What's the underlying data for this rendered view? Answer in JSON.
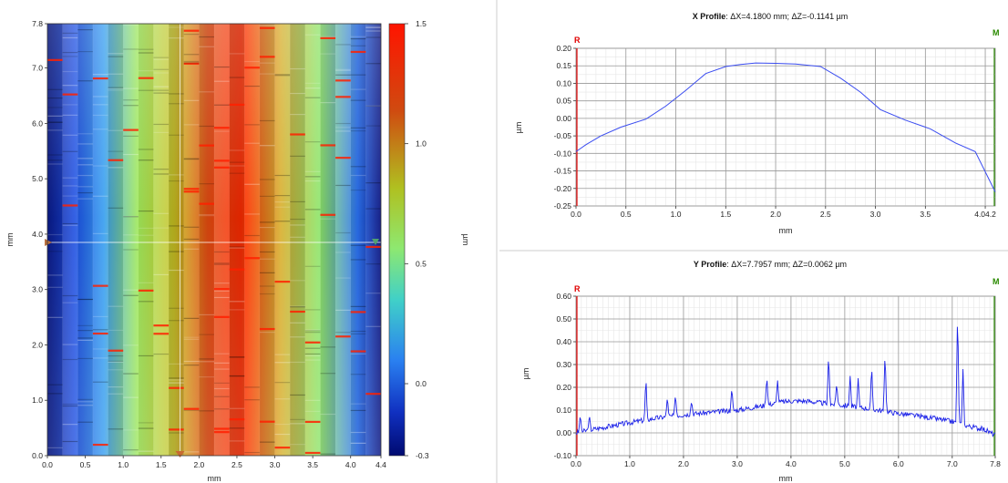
{
  "heatmap": {
    "xlabel": "mm",
    "ylabel": "mm",
    "x_ticks": [
      "0.0",
      "0.5",
      "1.0",
      "1.5",
      "2.0",
      "2.5",
      "3.0",
      "3.5",
      "4.0",
      "4.4"
    ],
    "y_ticks": [
      "0.0",
      "1.0",
      "2.0",
      "3.0",
      "4.0",
      "5.0",
      "6.0",
      "7.0",
      "7.8"
    ],
    "colorbar_label": "µm",
    "colorbar_ticks": [
      "1.5",
      "1.0",
      "0.5",
      "0.0",
      "-0.3"
    ],
    "colors": {
      "low": "#000a70",
      "mid": "#9ee85a",
      "high": "#ff1a00"
    }
  },
  "x_profile": {
    "title_bold": "X Profile",
    "title_rest": ": ΔX=4.1800 mm; ΔZ=-0.1141 µm",
    "marker_r": "R",
    "marker_m": "M",
    "xlabel": "mm",
    "ylabel": "µm",
    "x_ticks": [
      "0.0",
      "0.5",
      "1.0",
      "1.5",
      "2.0",
      "2.5",
      "3.0",
      "3.5",
      "4.04.2"
    ],
    "y_ticks": [
      "0.20",
      "0.15",
      "0.10",
      "0.05",
      "0.00",
      "-0.05",
      "-0.10",
      "-0.15",
      "-0.20",
      "-0.25"
    ]
  },
  "y_profile": {
    "title_bold": "Y Profile",
    "title_rest": ": ΔX=7.7957 mm; ΔZ=0.0062 µm",
    "marker_r": "R",
    "marker_m": "M",
    "xlabel": "mm",
    "ylabel": "µm",
    "x_ticks": [
      "0.0",
      "1.0",
      "2.0",
      "3.0",
      "4.0",
      "5.0",
      "6.0",
      "7.0",
      "7.8"
    ],
    "y_ticks": [
      "0.60",
      "0.50",
      "0.40",
      "0.30",
      "0.20",
      "0.10",
      "0.00",
      "-0.10"
    ]
  },
  "chart_data": [
    {
      "type": "heatmap",
      "xlabel": "mm",
      "ylabel": "mm",
      "xlim": [
        0,
        4.4
      ],
      "ylim": [
        0,
        7.8
      ],
      "zlim": [
        -0.3,
        1.5
      ],
      "zlabel": "µm",
      "cursor": {
        "x": 1.75,
        "y": 3.85
      }
    },
    {
      "type": "line",
      "title": "X Profile: ΔX=4.1800 mm; ΔZ=-0.1141 µm",
      "xlabel": "mm",
      "ylabel": "µm",
      "xlim": [
        0,
        4.2
      ],
      "ylim": [
        -0.25,
        0.2
      ],
      "x": [
        0.0,
        0.1,
        0.25,
        0.45,
        0.7,
        0.9,
        1.1,
        1.3,
        1.5,
        1.65,
        1.8,
        2.0,
        2.2,
        2.45,
        2.65,
        2.85,
        3.05,
        3.3,
        3.55,
        3.8,
        4.0,
        4.2
      ],
      "values": [
        -0.095,
        -0.075,
        -0.05,
        -0.025,
        -0.002,
        0.035,
        0.08,
        0.128,
        0.148,
        0.154,
        0.158,
        0.157,
        0.155,
        0.148,
        0.115,
        0.075,
        0.025,
        -0.005,
        -0.03,
        -0.07,
        -0.095,
        -0.21
      ],
      "grid": true
    },
    {
      "type": "line",
      "title": "Y Profile: ΔX=7.7957 mm; ΔZ=0.0062 µm",
      "xlabel": "mm",
      "ylabel": "µm",
      "xlim": [
        0,
        7.8
      ],
      "ylim": [
        -0.1,
        0.6
      ],
      "baseline_x": [
        0.0,
        0.3,
        0.6,
        1.0,
        1.5,
        2.0,
        2.5,
        3.0,
        3.5,
        3.8,
        4.0,
        4.3,
        4.6,
        5.0,
        5.5,
        6.0,
        6.5,
        7.0,
        7.3,
        7.6,
        7.8
      ],
      "baseline_values": [
        0.0,
        0.015,
        0.028,
        0.045,
        0.065,
        0.08,
        0.09,
        0.1,
        0.12,
        0.135,
        0.14,
        0.14,
        0.13,
        0.12,
        0.105,
        0.085,
        0.07,
        0.05,
        0.03,
        0.015,
        -0.01
      ],
      "peaks_x": [
        0.08,
        0.25,
        1.3,
        1.7,
        1.85,
        2.15,
        2.9,
        3.55,
        3.75,
        4.7,
        4.85,
        5.1,
        5.25,
        5.5,
        5.75,
        7.1,
        7.2
      ],
      "peaks_values": [
        0.08,
        0.08,
        0.25,
        0.16,
        0.17,
        0.14,
        0.2,
        0.25,
        0.23,
        0.35,
        0.22,
        0.25,
        0.24,
        0.3,
        0.36,
        0.55,
        0.28
      ],
      "grid": true
    }
  ]
}
